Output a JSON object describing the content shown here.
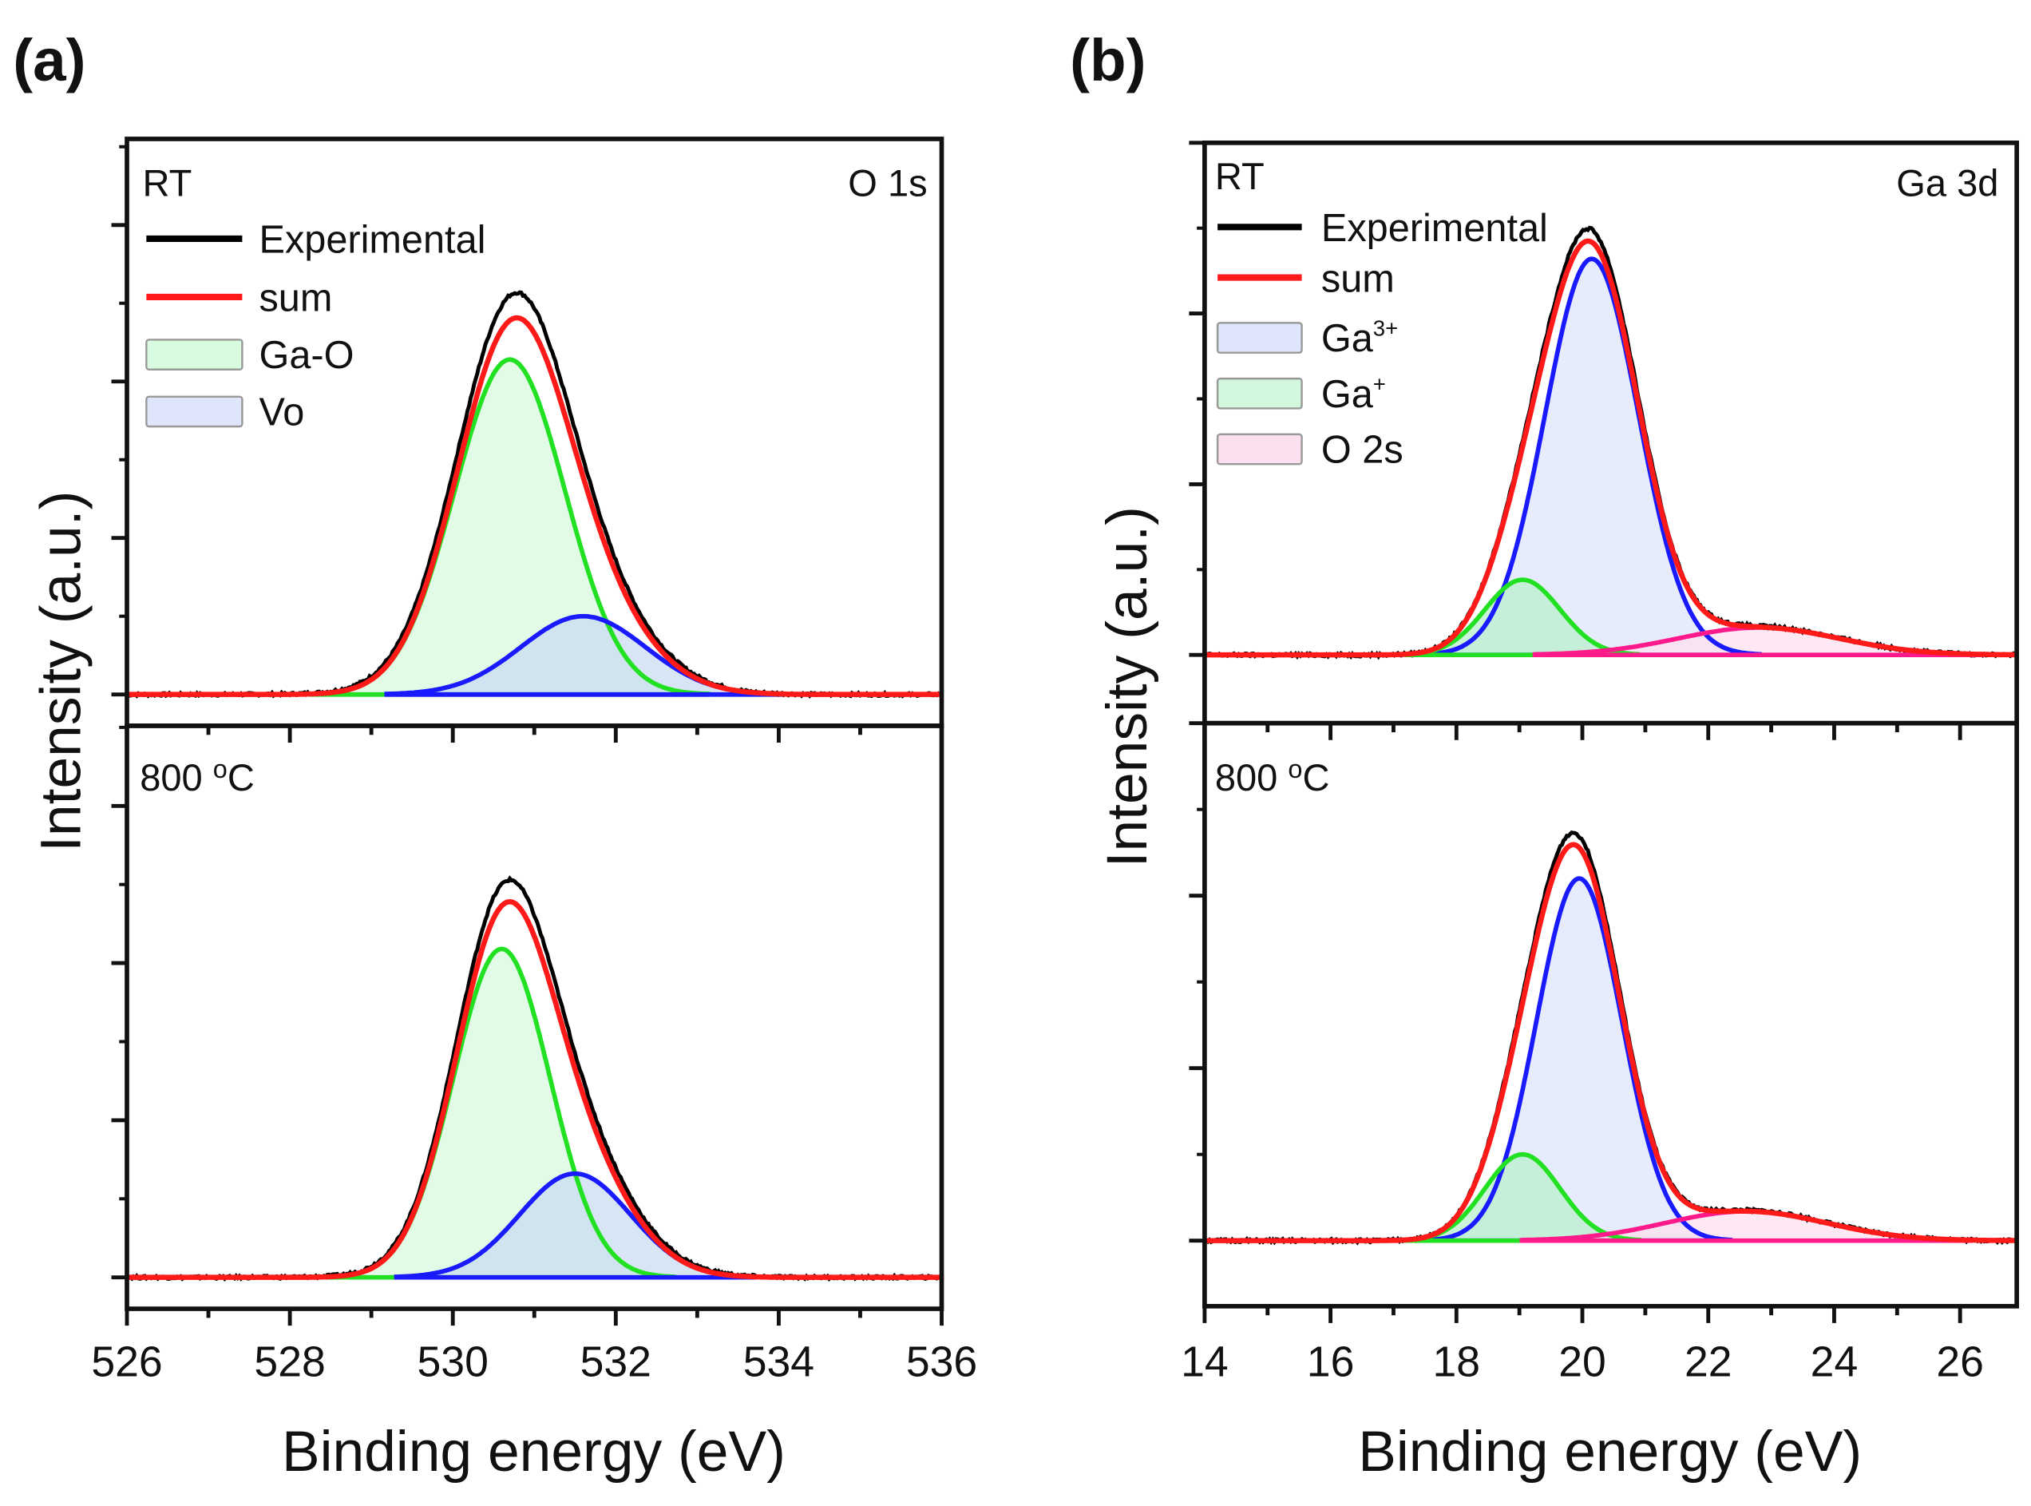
{
  "chart_data": [
    {
      "type": "line",
      "panel_label": "(a)",
      "xlabel": "Binding energy (eV)",
      "ylabel": "Intensity (a.u.)",
      "xlim": [
        526,
        536
      ],
      "xticks": [
        "526",
        "528",
        "530",
        "532",
        "534",
        "536"
      ],
      "xtick_values": [
        526,
        528,
        530,
        532,
        534,
        536
      ],
      "core_level": "O 1s",
      "legend": [
        {
          "label": "Experimental",
          "kind": "line",
          "color": "#000000"
        },
        {
          "label": "sum",
          "kind": "line",
          "color": "#ff1a1a"
        },
        {
          "label": "Ga-O",
          "kind": "box",
          "color": "#d8fadf"
        },
        {
          "label": "Vo",
          "kind": "box",
          "color": "#dfe6fb"
        }
      ],
      "subplots": [
        {
          "condition": "RT",
          "condition_sup": "",
          "ylim": [
            -0.2,
            3.55
          ],
          "yticks": [
            0,
            1,
            2,
            3
          ],
          "components": [
            {
              "name": "Ga-O",
              "center": 530.7,
              "height": 2.14,
              "fwhm": 1.6,
              "line": "#22e022",
              "fill": "#d8fadf"
            },
            {
              "name": "Vo",
              "center": 531.6,
              "height": 0.5,
              "fwhm": 1.8,
              "line": "#1a1aff",
              "fill": "#c9dcf2"
            }
          ],
          "experimental_extra": {
            "center": 530.9,
            "height": 0.09,
            "fwhm": 2.6
          }
        },
        {
          "condition": "800 ",
          "condition_sup": "o",
          "condition_unit": "C",
          "ylim": [
            -0.2,
            3.51
          ],
          "yticks": [
            0,
            1,
            2,
            3
          ],
          "components": [
            {
              "name": "Ga-O",
              "center": 530.6,
              "height": 2.09,
              "fwhm": 1.4,
              "line": "#22e022",
              "fill": "#d8fadf"
            },
            {
              "name": "Vo",
              "center": 531.5,
              "height": 0.66,
              "fwhm": 1.6,
              "line": "#1a1aff",
              "fill": "#c9dcf2"
            }
          ],
          "experimental_extra": {
            "center": 531.0,
            "height": 0.07,
            "fwhm": 2.6
          }
        }
      ]
    },
    {
      "type": "line",
      "panel_label": "(b)",
      "xlabel": "Binding energy (eV)",
      "ylabel": "Intensity (a.u.)",
      "xlim": [
        14,
        26.9
      ],
      "xticks": [
        "14",
        "16",
        "18",
        "20",
        "22",
        "24",
        "26"
      ],
      "xtick_values": [
        14,
        16,
        18,
        20,
        22,
        24,
        26
      ],
      "core_level": "Ga 3d",
      "legend": [
        {
          "label": "Experimental",
          "kind": "line",
          "color": "#000000"
        },
        {
          "label": "sum",
          "kind": "line",
          "color": "#ff1a1a"
        },
        {
          "label": "Ga",
          "sup": "3+",
          "kind": "box",
          "color": "#dfe6fb"
        },
        {
          "label": "Ga",
          "sup": "+",
          "kind": "box",
          "color": "#d3f7dc"
        },
        {
          "label": "O 2s",
          "kind": "box",
          "color": "#fde0f0"
        }
      ],
      "subplots": [
        {
          "condition": "RT",
          "condition_sup": "",
          "ylim": [
            -0.4,
            3.0
          ],
          "yticks": [
            0,
            1,
            2,
            3
          ],
          "components": [
            {
              "name": "Ga3+",
              "center": 20.15,
              "height": 2.32,
              "fwhm": 1.75,
              "line": "#1a1aff",
              "fill": "#dfe6fb"
            },
            {
              "name": "Ga+",
              "center": 19.05,
              "height": 0.44,
              "fwhm": 1.4,
              "line": "#22e022",
              "fill": "#b9f0cc"
            },
            {
              "name": "O 2s",
              "center": 22.8,
              "height": 0.16,
              "fwhm": 3.0,
              "line": "#ff1a8c",
              "fill": "#fde0f0"
            }
          ],
          "experimental_extra": {
            "center": 20.1,
            "height": 0.0,
            "fwhm": 2.0
          }
        },
        {
          "condition": "800 ",
          "condition_sup": "o",
          "condition_unit": "C",
          "ylim": [
            -0.38,
            3.0
          ],
          "yticks": [
            0,
            1,
            2,
            3
          ],
          "components": [
            {
              "name": "Ga3+",
              "center": 19.95,
              "height": 2.1,
              "fwhm": 1.6,
              "line": "#1a1aff",
              "fill": "#dfe6fb"
            },
            {
              "name": "Ga+",
              "center": 19.05,
              "height": 0.5,
              "fwhm": 1.4,
              "line": "#22e022",
              "fill": "#b9f0cc"
            },
            {
              "name": "O 2s",
              "center": 22.6,
              "height": 0.17,
              "fwhm": 3.0,
              "line": "#ff1a8c",
              "fill": "#fde0f0"
            }
          ],
          "experimental_extra": {
            "center": 19.9,
            "height": 0.0,
            "fwhm": 2.0
          }
        }
      ]
    }
  ]
}
